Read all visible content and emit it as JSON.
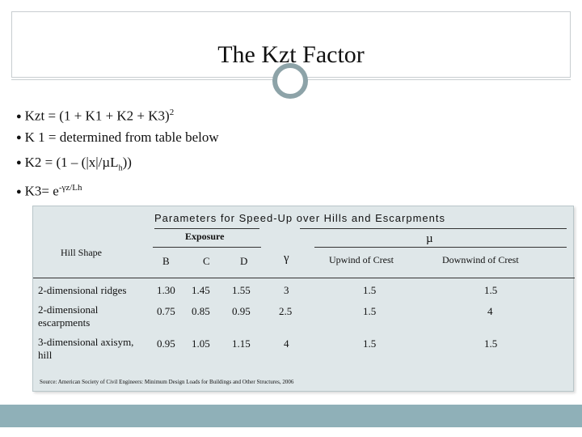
{
  "slide": {
    "title": "The Kzt Factor",
    "bullets": [
      {
        "text": "Kzt = (1 + K1 + K2 + K3)",
        "sup": "2"
      },
      {
        "text": "K 1 = determined from table below"
      },
      {
        "text": "K2 = (1 – (|x|/µL",
        "sub": "h",
        "tail": "))"
      },
      {
        "text": "K3= e",
        "sup": "-γz/Lh"
      }
    ]
  },
  "table": {
    "title": "Parameters for Speed-Up over Hills and Escarpments",
    "hill_shape": "Hill Shape",
    "exposure": "Exposure",
    "mu": "µ",
    "gamma": "γ",
    "cols": [
      "B",
      "C",
      "D"
    ],
    "upwind": "Upwind of Crest",
    "downwind": "Downwind of Crest",
    "rows": [
      {
        "shape": "2-dimensional ridges",
        "b": "1.30",
        "c": "1.45",
        "d": "1.55",
        "gamma": "3",
        "up": "1.5",
        "down": "1.5"
      },
      {
        "shape": "2-dimensional escarpments",
        "b": "0.75",
        "c": "0.85",
        "d": "0.95",
        "gamma": "2.5",
        "up": "1.5",
        "down": "4"
      },
      {
        "shape": "3-dimensional axisym, hill",
        "b": "0.95",
        "c": "1.05",
        "d": "1.15",
        "gamma": "4",
        "up": "1.5",
        "down": "1.5"
      }
    ],
    "source": "Source: American Society of Civil Engineers: Minimum Design Loads for Buildings and Other Structures, 2006"
  }
}
